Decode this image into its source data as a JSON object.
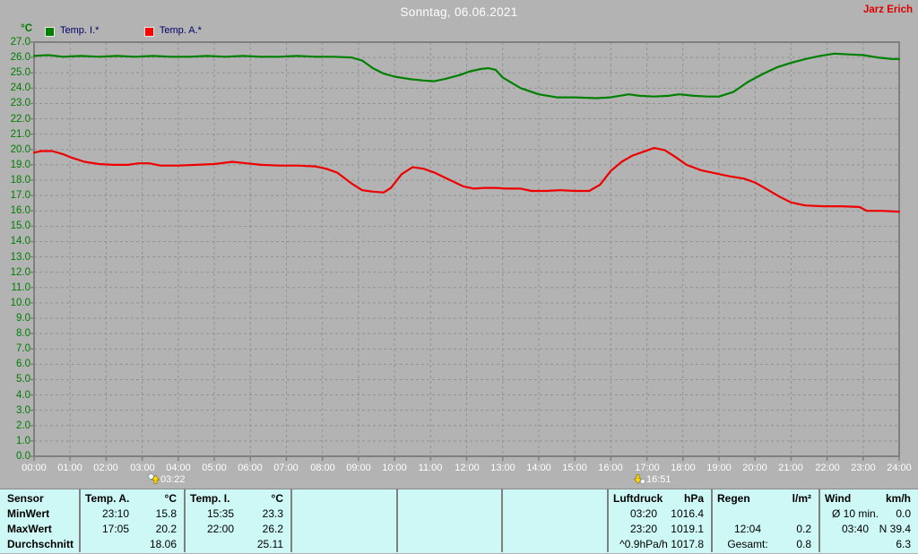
{
  "header": {
    "title": "Sonntag, 06.06.2021",
    "watermark": "Jarz Erich"
  },
  "legend": {
    "axis_unit": "°C",
    "items": [
      {
        "label": "Temp. I.*",
        "color": "#008000"
      },
      {
        "label": "Temp. A.*",
        "color": "#ff0000"
      }
    ]
  },
  "chart_data": {
    "type": "line",
    "title": "Sonntag, 06.06.2021",
    "xlabel": "",
    "ylabel": "°C",
    "xlim": [
      0,
      24
    ],
    "ylim": [
      0,
      27
    ],
    "grid": true,
    "legend_position": "top-left",
    "xticks": [
      "00:00",
      "01:00",
      "02:00",
      "03:00",
      "04:00",
      "05:00",
      "06:00",
      "07:00",
      "08:00",
      "09:00",
      "10:00",
      "11:00",
      "12:00",
      "13:00",
      "14:00",
      "15:00",
      "16:00",
      "17:00",
      "18:00",
      "19:00",
      "20:00",
      "21:00",
      "22:00",
      "23:00",
      "24:00"
    ],
    "yticks": [
      "27.0",
      "26.0",
      "25.0",
      "24.0",
      "23.0",
      "22.0",
      "21.0",
      "20.0",
      "19.0",
      "18.0",
      "17.0",
      "16.0",
      "15.0",
      "14.0",
      "13.0",
      "12.0",
      "11.0",
      "10.0",
      "9.0",
      "8.0",
      "7.0",
      "6.0",
      "5.0",
      "4.0",
      "3.0",
      "2.0",
      "1.0",
      "0.0"
    ],
    "series": [
      {
        "name": "Temp. I.*",
        "color": "#008000",
        "points": [
          [
            0,
            26.1
          ],
          [
            0.4,
            26.15
          ],
          [
            0.8,
            26.05
          ],
          [
            1.3,
            26.1
          ],
          [
            1.8,
            26.05
          ],
          [
            2.3,
            26.1
          ],
          [
            2.8,
            26.05
          ],
          [
            3.3,
            26.1
          ],
          [
            3.8,
            26.05
          ],
          [
            4.3,
            26.05
          ],
          [
            4.8,
            26.1
          ],
          [
            5.3,
            26.05
          ],
          [
            5.8,
            26.1
          ],
          [
            6.3,
            26.05
          ],
          [
            6.8,
            26.05
          ],
          [
            7.3,
            26.1
          ],
          [
            7.8,
            26.05
          ],
          [
            8.3,
            26.05
          ],
          [
            8.8,
            26.0
          ],
          [
            9.1,
            25.8
          ],
          [
            9.4,
            25.3
          ],
          [
            9.7,
            24.95
          ],
          [
            10.0,
            24.75
          ],
          [
            10.4,
            24.6
          ],
          [
            10.8,
            24.5
          ],
          [
            11.1,
            24.45
          ],
          [
            11.4,
            24.6
          ],
          [
            11.8,
            24.85
          ],
          [
            12.1,
            25.1
          ],
          [
            12.4,
            25.25
          ],
          [
            12.6,
            25.3
          ],
          [
            12.8,
            25.2
          ],
          [
            13.0,
            24.7
          ],
          [
            13.5,
            24.0
          ],
          [
            14.0,
            23.6
          ],
          [
            14.5,
            23.4
          ],
          [
            15.0,
            23.4
          ],
          [
            15.6,
            23.35
          ],
          [
            16.0,
            23.4
          ],
          [
            16.5,
            23.6
          ],
          [
            16.8,
            23.5
          ],
          [
            17.2,
            23.45
          ],
          [
            17.6,
            23.5
          ],
          [
            17.9,
            23.6
          ],
          [
            18.3,
            23.5
          ],
          [
            18.7,
            23.45
          ],
          [
            19.0,
            23.45
          ],
          [
            19.4,
            23.75
          ],
          [
            19.8,
            24.4
          ],
          [
            20.2,
            24.9
          ],
          [
            20.6,
            25.35
          ],
          [
            21.0,
            25.65
          ],
          [
            21.4,
            25.9
          ],
          [
            21.8,
            26.1
          ],
          [
            22.2,
            26.25
          ],
          [
            22.6,
            26.2
          ],
          [
            23.0,
            26.15
          ],
          [
            23.4,
            26.0
          ],
          [
            23.8,
            25.9
          ],
          [
            24,
            25.9
          ]
        ]
      },
      {
        "name": "Temp. A.*",
        "color": "#ee0000",
        "points": [
          [
            0,
            19.8
          ],
          [
            0.2,
            19.9
          ],
          [
            0.5,
            19.9
          ],
          [
            0.8,
            19.7
          ],
          [
            1.0,
            19.5
          ],
          [
            1.4,
            19.2
          ],
          [
            1.8,
            19.05
          ],
          [
            2.2,
            19.0
          ],
          [
            2.6,
            19.0
          ],
          [
            2.9,
            19.1
          ],
          [
            3.2,
            19.1
          ],
          [
            3.5,
            18.95
          ],
          [
            4.0,
            18.95
          ],
          [
            4.5,
            19.0
          ],
          [
            5.0,
            19.05
          ],
          [
            5.5,
            19.2
          ],
          [
            5.9,
            19.1
          ],
          [
            6.3,
            19.0
          ],
          [
            6.8,
            18.95
          ],
          [
            7.3,
            18.95
          ],
          [
            7.8,
            18.9
          ],
          [
            8.1,
            18.75
          ],
          [
            8.4,
            18.5
          ],
          [
            8.8,
            17.8
          ],
          [
            9.1,
            17.35
          ],
          [
            9.4,
            17.25
          ],
          [
            9.7,
            17.2
          ],
          [
            9.9,
            17.5
          ],
          [
            10.2,
            18.4
          ],
          [
            10.5,
            18.85
          ],
          [
            10.8,
            18.75
          ],
          [
            11.1,
            18.5
          ],
          [
            11.5,
            18.05
          ],
          [
            11.9,
            17.6
          ],
          [
            12.2,
            17.45
          ],
          [
            12.5,
            17.5
          ],
          [
            12.8,
            17.5
          ],
          [
            13.1,
            17.45
          ],
          [
            13.5,
            17.45
          ],
          [
            13.8,
            17.3
          ],
          [
            14.2,
            17.3
          ],
          [
            14.6,
            17.35
          ],
          [
            15.0,
            17.3
          ],
          [
            15.4,
            17.3
          ],
          [
            15.7,
            17.7
          ],
          [
            16.0,
            18.6
          ],
          [
            16.3,
            19.2
          ],
          [
            16.6,
            19.6
          ],
          [
            16.9,
            19.85
          ],
          [
            17.2,
            20.1
          ],
          [
            17.5,
            19.95
          ],
          [
            17.8,
            19.5
          ],
          [
            18.1,
            19.0
          ],
          [
            18.5,
            18.65
          ],
          [
            18.9,
            18.45
          ],
          [
            19.3,
            18.25
          ],
          [
            19.7,
            18.1
          ],
          [
            20.0,
            17.85
          ],
          [
            20.3,
            17.45
          ],
          [
            20.7,
            16.9
          ],
          [
            21.0,
            16.55
          ],
          [
            21.4,
            16.35
          ],
          [
            21.9,
            16.3
          ],
          [
            22.4,
            16.3
          ],
          [
            22.9,
            16.25
          ],
          [
            23.1,
            16.0
          ],
          [
            23.5,
            16.0
          ],
          [
            24,
            15.95
          ]
        ]
      }
    ],
    "markers": [
      {
        "time": "03:22",
        "hour": 3.37,
        "icon": "sunrise-icon"
      },
      {
        "time": "16:51",
        "hour": 16.85,
        "icon": "sunset-icon"
      }
    ]
  },
  "table": {
    "row_labels": [
      "Sensor",
      "MinWert",
      "MaxWert",
      "Durchschnitt"
    ],
    "columns": [
      {
        "header": "Temp. A.",
        "unit": "°C",
        "rows": [
          [
            "23:10",
            "15.8"
          ],
          [
            "17:05",
            "20.2"
          ],
          [
            "",
            "18.06"
          ]
        ]
      },
      {
        "header": "Temp. I.",
        "unit": "°C",
        "rows": [
          [
            "15:35",
            "23.3"
          ],
          [
            "22:00",
            "26.2"
          ],
          [
            "",
            "25.11"
          ]
        ]
      },
      {
        "header": "",
        "unit": "",
        "rows": [
          [
            "",
            ""
          ],
          [
            "",
            ""
          ],
          [
            "",
            ""
          ]
        ]
      },
      {
        "header": "",
        "unit": "",
        "rows": [
          [
            "",
            ""
          ],
          [
            "",
            ""
          ],
          [
            "",
            ""
          ]
        ]
      },
      {
        "header": "",
        "unit": "",
        "rows": [
          [
            "",
            ""
          ],
          [
            "",
            ""
          ],
          [
            "",
            ""
          ]
        ]
      },
      {
        "header": "Luftdruck",
        "unit": "hPa",
        "rows": [
          [
            "03:20",
            "1016.4"
          ],
          [
            "23:20",
            "1019.1"
          ],
          [
            "^0.9hPa/h",
            "1017.8"
          ]
        ]
      },
      {
        "header": "Regen",
        "unit": "l/m²",
        "rows": [
          [
            "",
            ""
          ],
          [
            "12:04",
            "0.2"
          ],
          [
            "Gesamt:",
            "0.8"
          ]
        ]
      },
      {
        "header": "Wind",
        "unit": "km/h",
        "rows": [
          [
            "Ø 10 min.",
            "0.0"
          ],
          [
            "03:40",
            "N 39.4"
          ],
          [
            "",
            "6.3"
          ]
        ]
      }
    ]
  },
  "colors": {
    "background": "#b3b3b3",
    "plot_border": "#7f7f7f",
    "grid": "#929292",
    "axis_label_green": "#007d00",
    "x_label_white": "#ffffff",
    "table_background": "#cdf8f6",
    "table_divider": "#808080",
    "temp_i_line": "#008000",
    "temp_a_line": "#ee0000",
    "watermark_red": "#dd0000"
  }
}
